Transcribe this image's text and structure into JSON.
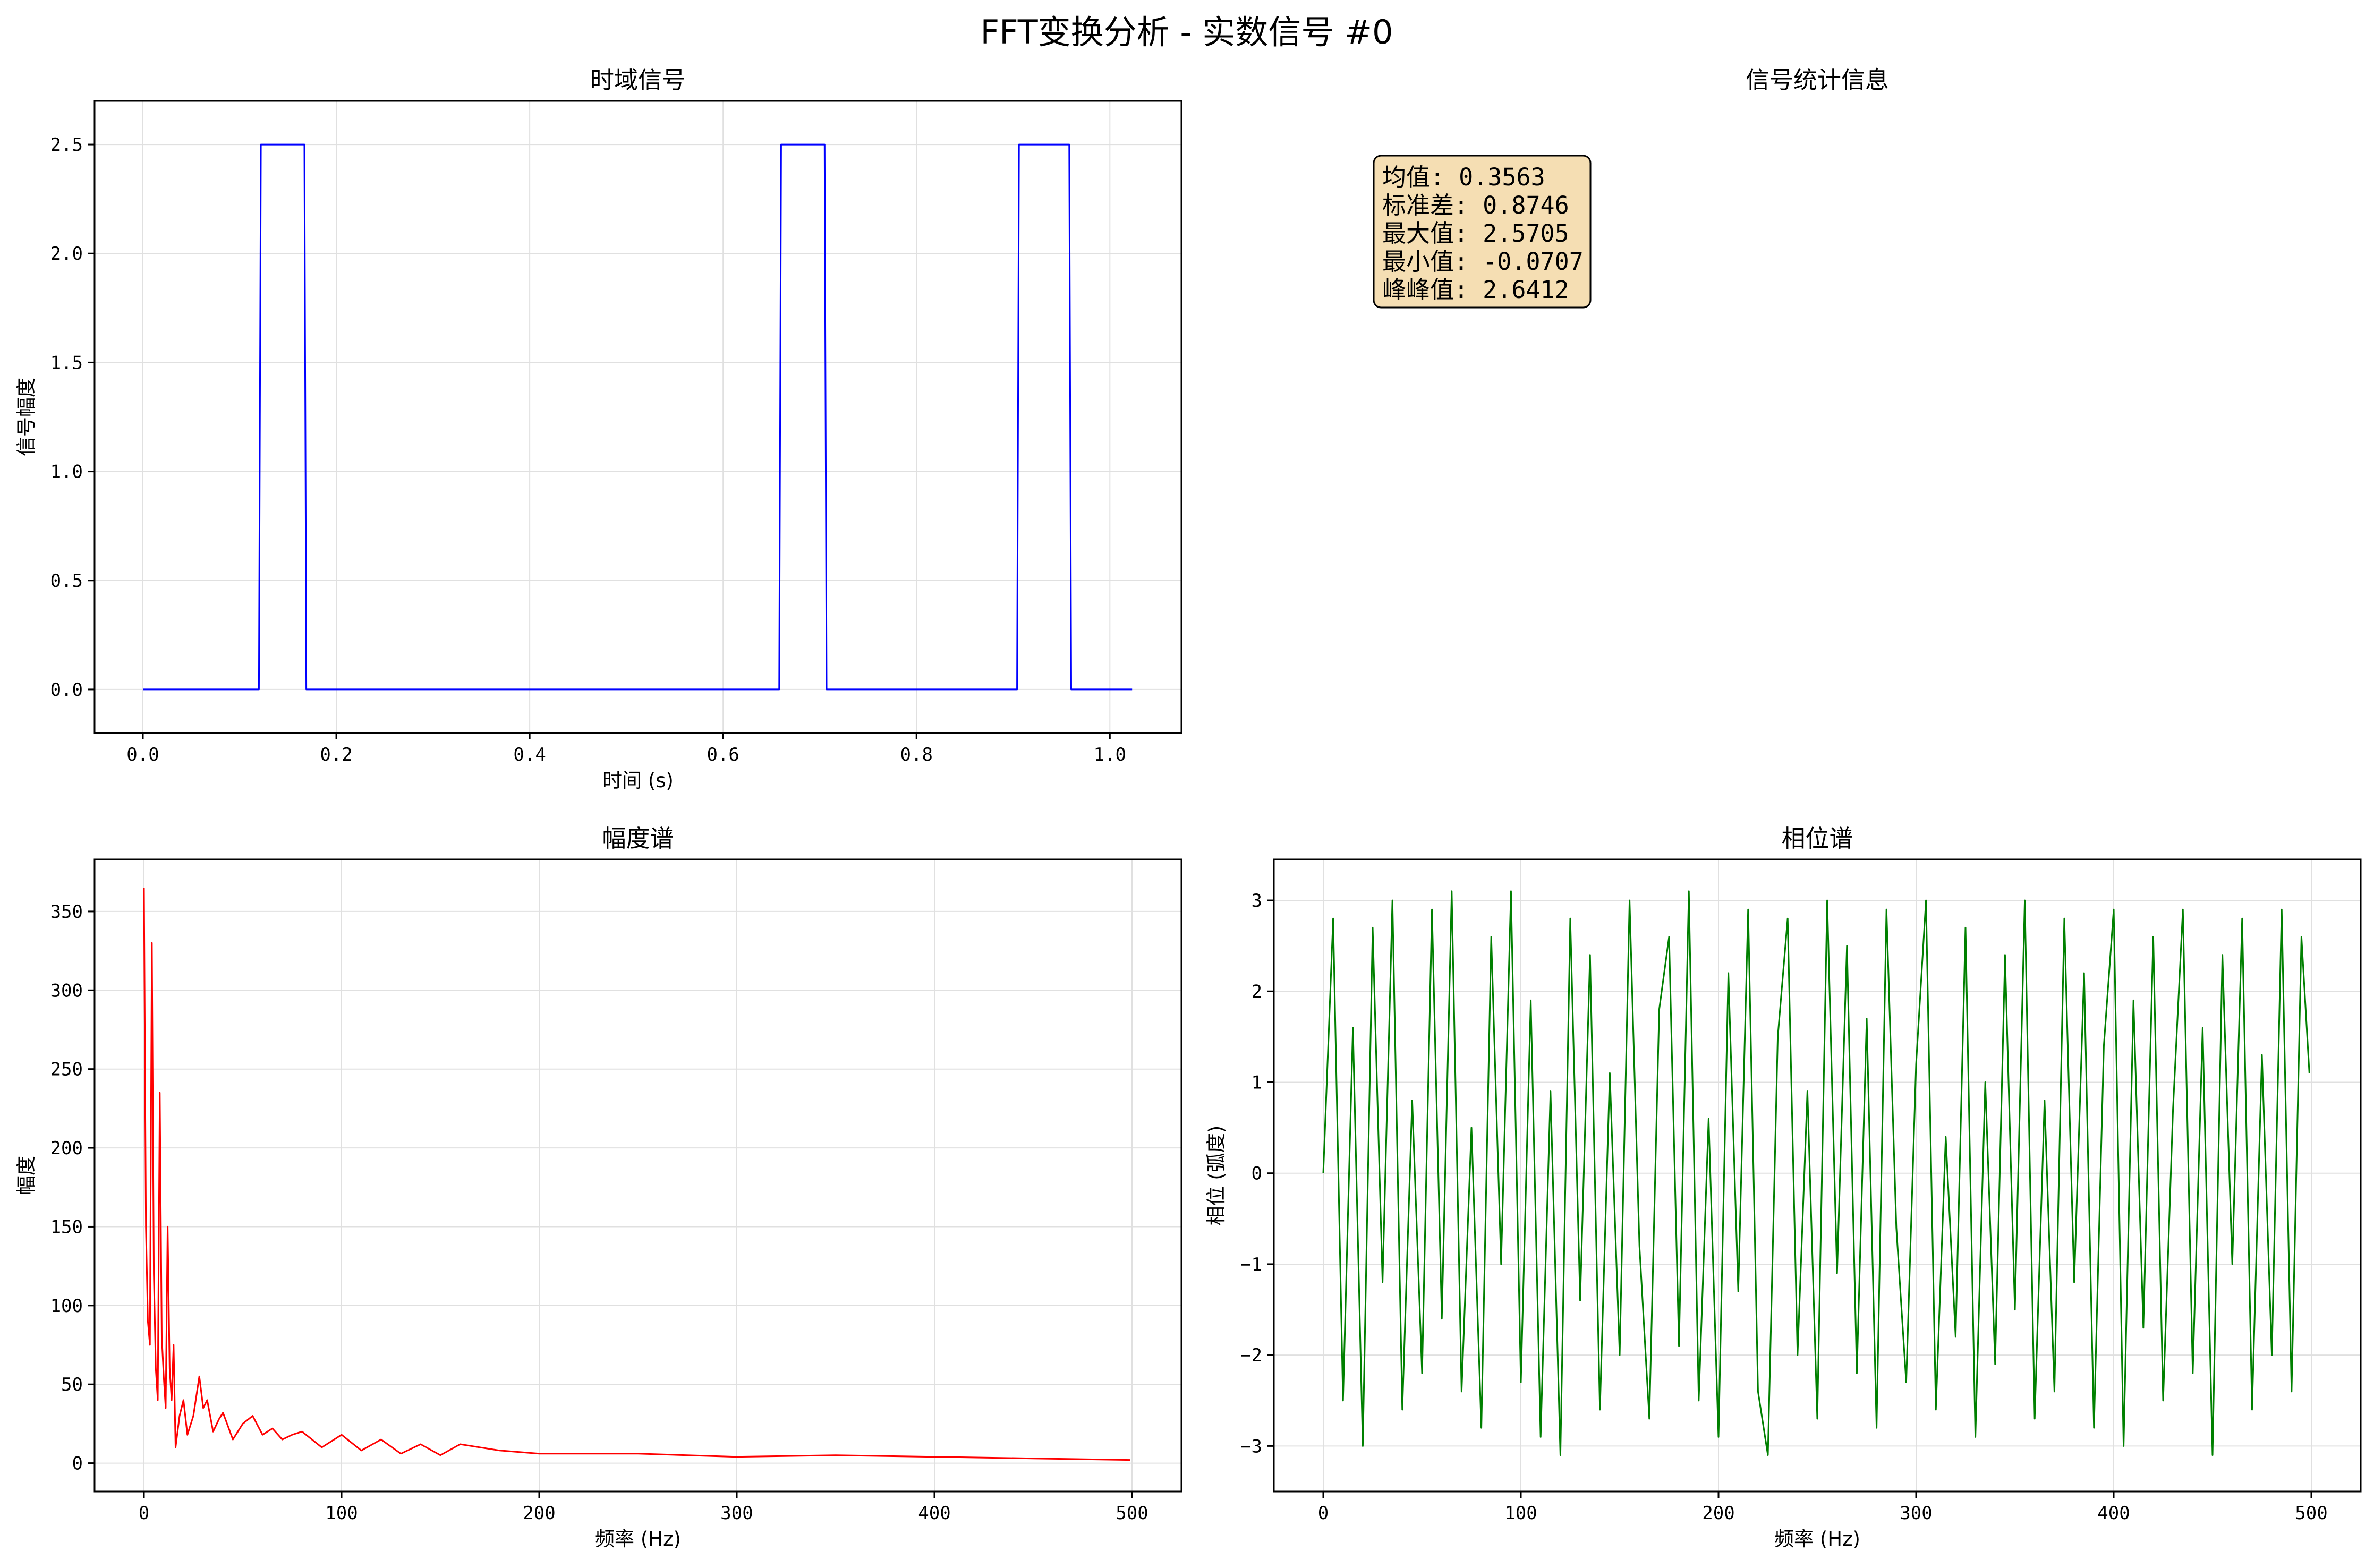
{
  "figure": {
    "suptitle": "FFT变换分析 - 实数信号 #0"
  },
  "chart_data": [
    {
      "id": "time",
      "type": "line",
      "title": "时域信号",
      "xlabel": "时间 (s)",
      "ylabel": "信号幅度",
      "xlim": [
        -0.05,
        1.074
      ],
      "ylim": [
        -0.2,
        2.7
      ],
      "xticks": [
        0.0,
        0.2,
        0.4,
        0.6,
        0.8,
        1.0
      ],
      "xtick_labels": [
        "0.0",
        "0.2",
        "0.4",
        "0.6",
        "0.8",
        "1.0"
      ],
      "yticks": [
        0.0,
        0.5,
        1.0,
        1.5,
        2.0,
        2.5
      ],
      "ytick_labels": [
        "0.0",
        "0.5",
        "1.0",
        "1.5",
        "2.0",
        "2.5"
      ],
      "grid": true,
      "color": "#0000ff",
      "series": [
        {
          "x": [
            0.0,
            0.12,
            0.122,
            0.167,
            0.169,
            0.658,
            0.66,
            0.705,
            0.707,
            0.904,
            0.906,
            0.958,
            0.96,
            1.023
          ],
          "y": [
            0.0,
            0.0,
            2.5,
            2.5,
            0.0,
            0.0,
            2.5,
            2.5,
            0.0,
            0.0,
            2.5,
            2.5,
            0.0,
            0.0
          ]
        }
      ]
    },
    {
      "id": "stats",
      "type": "table",
      "title": "信号统计信息",
      "lines": [
        "均值: 0.3563",
        "标准差: 0.8746",
        "最大值: 2.5705",
        "最小值: -0.0707",
        "峰峰值: 2.6412"
      ],
      "box_color": "#f5deb3"
    },
    {
      "id": "mag",
      "type": "line",
      "title": "幅度谱",
      "xlabel": "频率 (Hz)",
      "ylabel": "幅度",
      "xlim": [
        -25,
        525
      ],
      "ylim": [
        -18,
        383
      ],
      "xticks": [
        0,
        100,
        200,
        300,
        400,
        500
      ],
      "xtick_labels": [
        "0",
        "100",
        "200",
        "300",
        "400",
        "500"
      ],
      "yticks": [
        0,
        50,
        100,
        150,
        200,
        250,
        300,
        350
      ],
      "ytick_labels": [
        "0",
        "50",
        "100",
        "150",
        "200",
        "250",
        "300",
        "350"
      ],
      "grid": true,
      "color": "#ff0000",
      "series": [
        {
          "x": [
            0,
            1,
            2,
            3,
            4,
            5,
            6,
            7,
            8,
            9,
            10,
            11,
            12,
            13,
            14,
            15,
            16,
            18,
            20,
            22,
            25,
            28,
            30,
            32,
            35,
            38,
            40,
            45,
            50,
            55,
            60,
            65,
            70,
            75,
            80,
            90,
            100,
            110,
            120,
            130,
            140,
            150,
            160,
            180,
            200,
            250,
            300,
            350,
            400,
            450,
            499
          ],
          "y": [
            365,
            150,
            90,
            75,
            330,
            120,
            60,
            40,
            235,
            80,
            55,
            35,
            150,
            60,
            40,
            75,
            10,
            30,
            40,
            18,
            30,
            55,
            35,
            40,
            20,
            28,
            32,
            15,
            25,
            30,
            18,
            22,
            15,
            18,
            20,
            10,
            18,
            8,
            15,
            6,
            12,
            5,
            12,
            8,
            6,
            6,
            4,
            5,
            4,
            3,
            2
          ]
        }
      ]
    },
    {
      "id": "phase",
      "type": "line",
      "title": "相位谱",
      "xlabel": "频率 (Hz)",
      "ylabel": "相位 (弧度)",
      "xlim": [
        -25,
        525
      ],
      "ylim": [
        -3.5,
        3.45
      ],
      "xticks": [
        0,
        100,
        200,
        300,
        400,
        500
      ],
      "xtick_labels": [
        "0",
        "100",
        "200",
        "300",
        "400",
        "500"
      ],
      "yticks": [
        -3,
        -2,
        -1,
        0,
        1,
        2,
        3
      ],
      "ytick_labels": [
        "−3",
        "−2",
        "−1",
        "0",
        "1",
        "2",
        "3"
      ],
      "grid": true,
      "color": "#008000",
      "series": [
        {
          "x": [
            0,
            5,
            10,
            15,
            20,
            25,
            30,
            35,
            40,
            45,
            50,
            55,
            60,
            65,
            70,
            75,
            80,
            85,
            90,
            95,
            100,
            105,
            110,
            115,
            120,
            125,
            130,
            135,
            140,
            145,
            150,
            155,
            160,
            165,
            170,
            175,
            180,
            185,
            190,
            195,
            200,
            205,
            210,
            215,
            220,
            225,
            230,
            235,
            240,
            245,
            250,
            255,
            260,
            265,
            270,
            275,
            280,
            285,
            290,
            295,
            300,
            305,
            310,
            315,
            320,
            325,
            330,
            335,
            340,
            345,
            350,
            355,
            360,
            365,
            370,
            375,
            380,
            385,
            390,
            395,
            400,
            405,
            410,
            415,
            420,
            425,
            430,
            435,
            440,
            445,
            450,
            455,
            460,
            465,
            470,
            475,
            480,
            485,
            490,
            495,
            499
          ],
          "y": [
            0.0,
            2.8,
            -2.5,
            1.6,
            -3.0,
            2.7,
            -1.2,
            3.0,
            -2.6,
            0.8,
            -2.2,
            2.9,
            -1.6,
            3.1,
            -2.4,
            0.5,
            -2.8,
            2.6,
            -1.0,
            3.1,
            -2.3,
            1.9,
            -2.9,
            0.9,
            -3.1,
            2.8,
            -1.4,
            2.4,
            -2.6,
            1.1,
            -2.0,
            3.0,
            -0.8,
            -2.7,
            1.8,
            2.6,
            -1.9,
            3.1,
            -2.5,
            0.6,
            -2.9,
            2.2,
            -1.3,
            2.9,
            -2.4,
            -3.1,
            1.5,
            2.8,
            -2.0,
            0.9,
            -2.7,
            3.0,
            -1.1,
            2.5,
            -2.2,
            1.7,
            -2.8,
            2.9,
            -0.6,
            -2.3,
            1.2,
            3.0,
            -2.6,
            0.4,
            -1.8,
            2.7,
            -2.9,
            1.0,
            -2.1,
            2.4,
            -1.5,
            3.0,
            -2.7,
            0.8,
            -2.4,
            2.8,
            -1.2,
            2.2,
            -2.8,
            1.4,
            2.9,
            -3.0,
            1.9,
            -1.7,
            2.6,
            -2.5,
            0.7,
            2.9,
            -2.2,
            1.6,
            -3.1,
            2.4,
            -1.0,
            2.8,
            -2.6,
            1.3,
            -2.0,
            2.9,
            -2.4,
            2.6,
            1.1
          ]
        }
      ]
    }
  ]
}
